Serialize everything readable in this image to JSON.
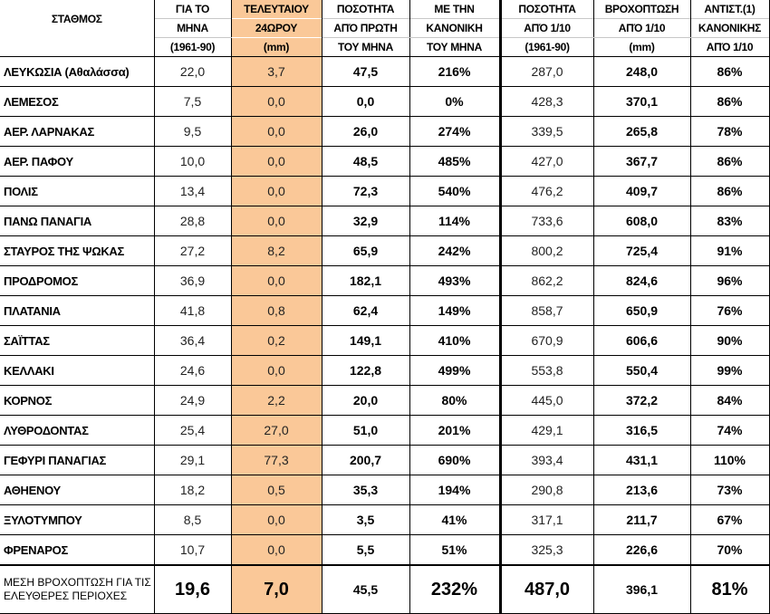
{
  "colors": {
    "highlight": "#fac898"
  },
  "header": {
    "station": "ΣΤΑΘΜΟΣ",
    "columns": [
      [
        "ΓΙΑ ΤΟ",
        "ΜΗΝΑ",
        "(1961-90)"
      ],
      [
        "ΤΕΛΕΥΤΑΙΟΥ",
        "24ΩΡΟΥ",
        "(mm)"
      ],
      [
        "ΠΟΣΟΤΗΤΑ",
        "ΑΠΌ ΠΡΩΤΗ",
        "ΤΟΥ ΜΗΝΑ"
      ],
      [
        "ΜΕ ΤΗΝ",
        "ΚΑΝΟΝΙΚΗ",
        "ΤΟΥ ΜΗΝΑ"
      ],
      [
        "ΠΟΣΟΤΗΤΑ",
        "ΑΠΌ 1/10",
        "(1961-90)"
      ],
      [
        "ΒΡΟΧΟΠΤΩΣΗ",
        "ΑΠΌ 1/10",
        "(mm)"
      ],
      [
        "ΑΝΤΙΣΤ.(1)",
        "ΚΑΝΟΝΙΚΗΣ",
        "ΑΠΌ 1/10"
      ]
    ]
  },
  "rows": [
    [
      "ΛΕΥΚΩΣΙΑ (Αθαλάσσα)",
      "22,0",
      "3,7",
      "47,5",
      "216%",
      "287,0",
      "248,0",
      "86%"
    ],
    [
      "ΛΕΜΕΣΟΣ",
      "7,5",
      "0,0",
      "0,0",
      "0%",
      "428,3",
      "370,1",
      "86%"
    ],
    [
      "ΑΕΡ. ΛΑΡΝΑΚΑΣ",
      "9,5",
      "0,0",
      "26,0",
      "274%",
      "339,5",
      "265,8",
      "78%"
    ],
    [
      "ΑΕΡ.  ΠΑΦΟΥ",
      "10,0",
      "0,0",
      "48,5",
      "485%",
      "427,0",
      "367,7",
      "86%"
    ],
    [
      "ΠΟΛΙΣ",
      "13,4",
      "0,0",
      "72,3",
      "540%",
      "476,2",
      "409,7",
      "86%"
    ],
    [
      "ΠΑΝΩ ΠΑΝΑΓΙΑ",
      "28,8",
      "0,0",
      "32,9",
      "114%",
      "733,6",
      "608,0",
      "83%"
    ],
    [
      "ΣΤΑΥΡΟΣ ΤΗΣ ΨΩΚΑΣ",
      "27,2",
      "8,2",
      "65,9",
      "242%",
      "800,2",
      "725,4",
      "91%"
    ],
    [
      "ΠΡΟΔΡΟΜΟΣ",
      "36,9",
      "0,0",
      "182,1",
      "493%",
      "862,2",
      "824,6",
      "96%"
    ],
    [
      "ΠΛΑΤΑΝΙΑ",
      "41,8",
      "0,8",
      "62,4",
      "149%",
      "858,7",
      "650,9",
      "76%"
    ],
    [
      "ΣΑΪΤΤΑΣ",
      "36,4",
      "0,2",
      "149,1",
      "410%",
      "670,9",
      "606,6",
      "90%"
    ],
    [
      "ΚΕΛΛΑΚΙ",
      "24,6",
      "0,0",
      "122,8",
      "499%",
      "553,8",
      "550,4",
      "99%"
    ],
    [
      "ΚΟΡΝΟΣ",
      "24,9",
      "2,2",
      "20,0",
      "80%",
      "445,0",
      "372,2",
      "84%"
    ],
    [
      "ΛΥΘΡΟΔΟΝΤΑΣ",
      "25,4",
      "27,0",
      "51,0",
      "201%",
      "429,1",
      "316,5",
      "74%"
    ],
    [
      "ΓΕΦΥΡΙ ΠΑΝΑΓΙΑΣ",
      "29,1",
      "77,3",
      "200,7",
      "690%",
      "393,4",
      "431,1",
      "110%"
    ],
    [
      "ΑΘΗΕΝΟΥ",
      "18,2",
      "0,5",
      "35,3",
      "194%",
      "290,8",
      "213,6",
      "73%"
    ],
    [
      "ΞΥΛΟΤΥΜΠΟΥ",
      "8,5",
      "0,0",
      "3,5",
      "41%",
      "317,1",
      "211,7",
      "67%"
    ],
    [
      "ΦΡΕΝΑΡΟΣ",
      "10,7",
      "0,0",
      "5,5",
      "51%",
      "325,3",
      "226,6",
      "70%"
    ]
  ],
  "footer": [
    "ΜΕΣΗ ΒΡΟΧΟΠΤΩΣΗ ΓΙΑ ΤΙΣ ΕΛΕΥΘΕΡΕΣ ΠΕΡΙΟΧΕΣ",
    "19,6",
    "7,0",
    "45,5",
    "232%",
    "487,0",
    "396,1",
    "81%"
  ]
}
